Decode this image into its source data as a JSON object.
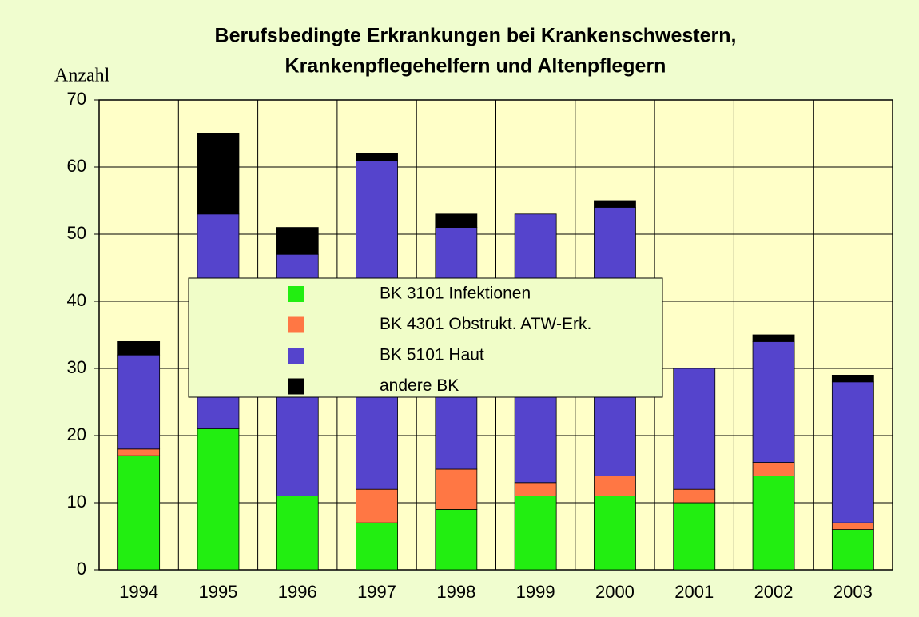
{
  "chart_data": {
    "type": "stacked_bar",
    "title": [
      "Berufsbedingte Erkrankungen bei Krankenschwestern,",
      "Krankenpflegehelfern und Altenpflegern"
    ],
    "y_label": "Anzahl",
    "categories": [
      "1994",
      "1995",
      "1996",
      "1997",
      "1998",
      "1999",
      "2000",
      "2001",
      "2002",
      "2003"
    ],
    "series": [
      {
        "name": "BK 3101 Infektionen",
        "color": "#22ee11",
        "values": [
          17,
          21,
          11,
          7,
          9,
          11,
          11,
          10,
          14,
          6
        ]
      },
      {
        "name": "BK 4301 Obstrukt. ATW-Erk.",
        "color": "#ff7744",
        "values": [
          1,
          0,
          0,
          5,
          6,
          2,
          3,
          2,
          2,
          1
        ]
      },
      {
        "name": "BK 5101 Haut",
        "color": "#5544cc",
        "values": [
          14,
          32,
          36,
          49,
          36,
          40,
          40,
          18,
          18,
          21
        ]
      },
      {
        "name": "andere BK",
        "color": "#000000",
        "values": [
          2,
          12,
          4,
          1,
          2,
          0,
          1,
          0,
          1,
          1
        ]
      }
    ],
    "ylim": [
      0,
      70
    ],
    "yticks": [
      0,
      10,
      20,
      30,
      40,
      50,
      60,
      70
    ],
    "grid": true
  }
}
